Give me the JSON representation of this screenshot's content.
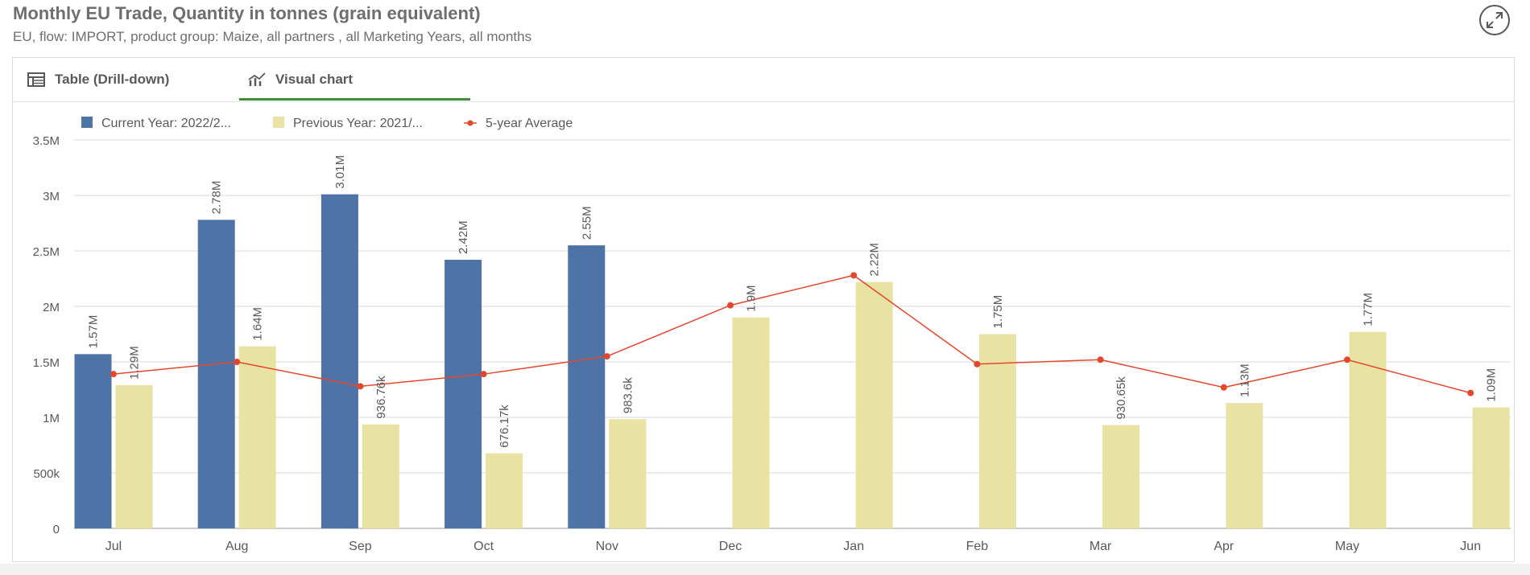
{
  "header": {
    "title": "Monthly EU Trade, Quantity in tonnes (grain equivalent)",
    "subtitle": "EU, flow: IMPORT, product group: Maize, all partners , all Marketing Years, all months"
  },
  "tabs": [
    {
      "label": "Table (Drill-down)",
      "icon": "table-icon",
      "active": false
    },
    {
      "label": "Visual chart",
      "icon": "line-chart-icon",
      "active": true
    }
  ],
  "colors": {
    "current": "#4e73a6",
    "previous": "#e8e3a3",
    "average": "#e5472d",
    "tab_accent": "#3f8f3a"
  },
  "chart_data": {
    "type": "bar",
    "categories": [
      "Jul",
      "Aug",
      "Sep",
      "Oct",
      "Nov",
      "Dec",
      "Jan",
      "Feb",
      "Mar",
      "Apr",
      "May",
      "Jun"
    ],
    "series": [
      {
        "name": "Current Year: 2022/2...",
        "kind": "bar",
        "values": [
          1570000,
          2780000,
          3010000,
          2420000,
          2550000,
          null,
          null,
          null,
          null,
          null,
          null,
          null
        ],
        "labels": [
          "1.57M",
          "2.78M",
          "3.01M",
          "2.42M",
          "2.55M",
          "",
          "",
          "",
          "",
          "",
          "",
          ""
        ]
      },
      {
        "name": "Previous Year: 2021/...",
        "kind": "bar",
        "values": [
          1290000,
          1640000,
          936760,
          676170,
          983600,
          1900000,
          2220000,
          1750000,
          930650,
          1130000,
          1770000,
          1090000
        ],
        "labels": [
          "1.29M",
          "1.64M",
          "936.76k",
          "676.17k",
          "983.6k",
          "1.9M",
          "2.22M",
          "1.75M",
          "930.65k",
          "1.13M",
          "1.77M",
          "1.09M"
        ]
      },
      {
        "name": "5-year Average",
        "kind": "line",
        "values": [
          1390000,
          1500000,
          1280000,
          1390000,
          1550000,
          2010000,
          2280000,
          1480000,
          1520000,
          1270000,
          1520000,
          1220000
        ]
      }
    ],
    "yticks": [
      "0",
      "500k",
      "1M",
      "1.5M",
      "2M",
      "2.5M",
      "3M",
      "3.5M"
    ],
    "ylim": [
      0,
      3500000
    ],
    "grid": true,
    "legend": "top-left",
    "title": "Monthly EU Trade, Quantity in tonnes (grain equivalent)"
  }
}
